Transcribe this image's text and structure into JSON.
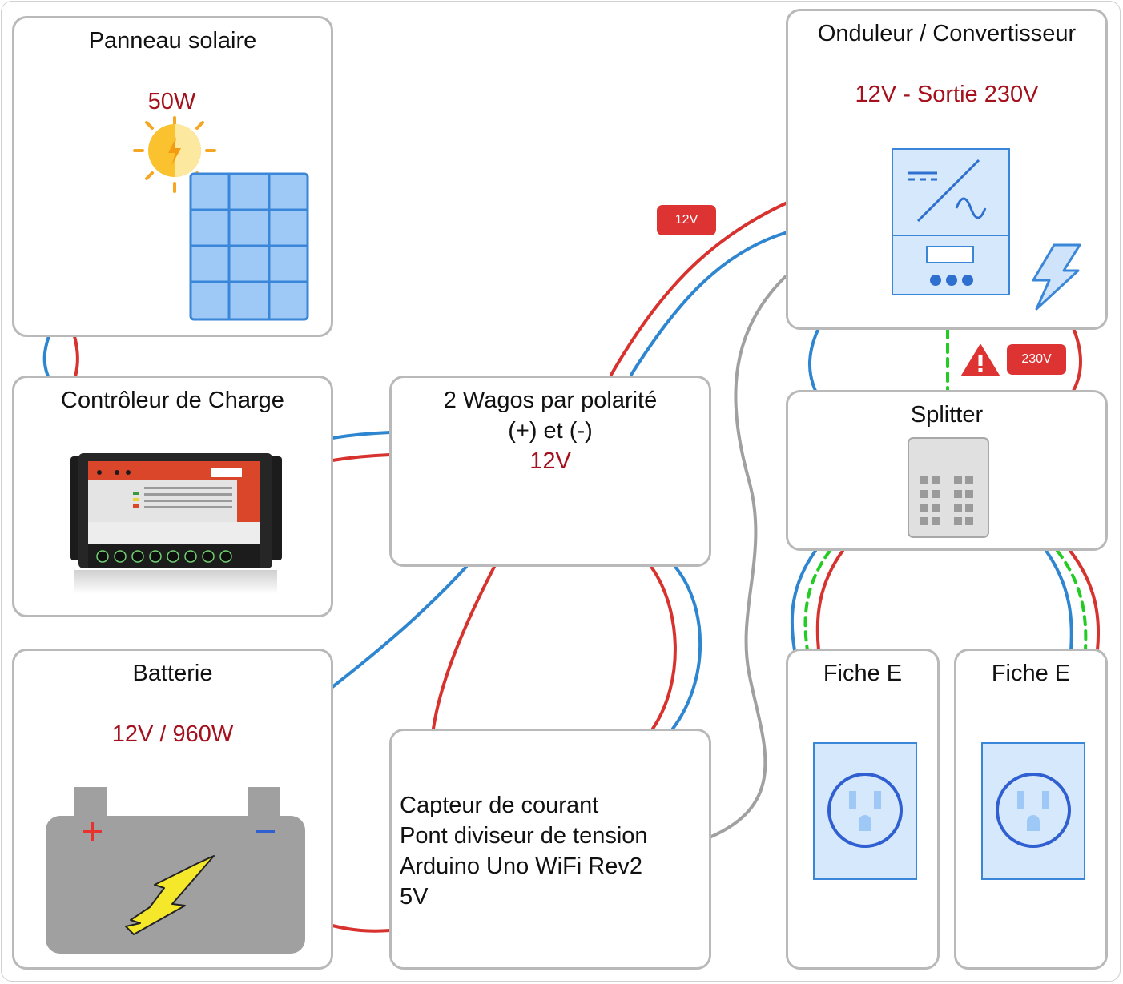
{
  "nodes": {
    "solar_panel": {
      "title": "Panneau solaire",
      "spec": "50W"
    },
    "charge_controller": {
      "title": "Contrôleur de Charge"
    },
    "wagos": {
      "title_line1": "2 Wagos par polarité",
      "title_line2": "(+) et (-)",
      "spec": "12V"
    },
    "battery": {
      "title": "Batterie",
      "spec": "12V / 960W"
    },
    "sensor": {
      "lines": [
        "Capteur de courant",
        "Pont diviseur de tension",
        "Arduino Uno WiFi Rev2",
        "5V"
      ]
    },
    "inverter": {
      "title": "Onduleur / Convertisseur",
      "spec": "12V - Sortie 230V"
    },
    "splitter": {
      "title": "Splitter"
    },
    "outlet_left": {
      "title": "Fiche E"
    },
    "outlet_right": {
      "title": "Fiche E"
    }
  },
  "labels": {
    "wire_12v": "12V",
    "wire_230v": "230V"
  },
  "colors": {
    "positive": "#d8322e",
    "negative": "#2f86d0",
    "earth": "#22cc22",
    "signal": "#a0a0a0",
    "spec_text": "#a4101c"
  },
  "icons": [
    "sun-icon",
    "solar-panel-icon",
    "charge-controller-photo",
    "battery-icon",
    "inverter-icon",
    "lightning-icon",
    "splitter-icon",
    "power-outlet-icon",
    "warning-icon"
  ]
}
